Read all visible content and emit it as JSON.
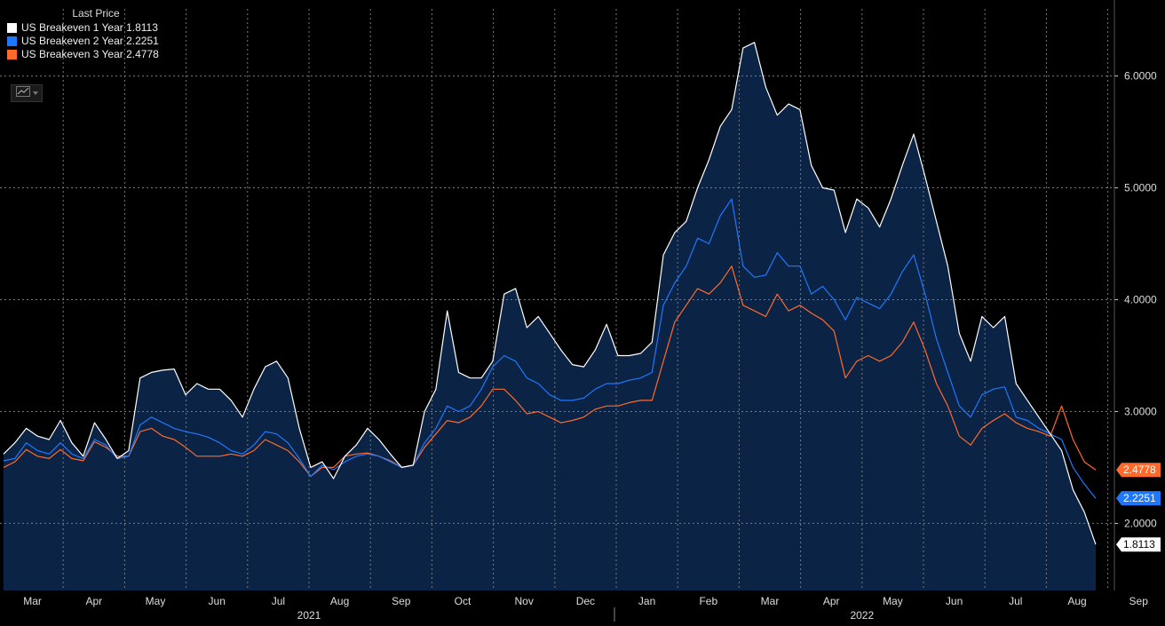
{
  "legend": {
    "header": "Last Price",
    "items": [
      {
        "label": "US Breakeven 1 Year",
        "value": "1.8113",
        "color": "#ffffff"
      },
      {
        "label": "US Breakeven 2 Year",
        "value": "2.2251",
        "color": "#1e78ff"
      },
      {
        "label": "US Breakeven 3 Year",
        "value": "2.4778",
        "color": "#ff6a2b"
      }
    ]
  },
  "colors": {
    "background": "#000000",
    "area_fill": "#0b2344",
    "grid": "#7a7a7a"
  },
  "chart_data": {
    "type": "line",
    "y_axis_side": "right",
    "ylim": [
      1.4,
      6.6
    ],
    "yticks": [
      "2.0000",
      "3.0000",
      "4.0000",
      "5.0000",
      "6.0000"
    ],
    "x_month_labels": [
      "Mar",
      "Apr",
      "May",
      "Jun",
      "Jul",
      "Aug",
      "Sep",
      "Oct",
      "Nov",
      "Dec",
      "Jan",
      "Feb",
      "Mar",
      "Apr",
      "May",
      "Jun",
      "Jul",
      "Aug",
      "Sep"
    ],
    "x_year_labels": [
      "2021",
      "2022"
    ],
    "grid": true,
    "area_fill_under_series": "US Breakeven 1 Year",
    "last_value_tags": [
      "2.4778",
      "2.2251",
      "1.8113"
    ],
    "series": [
      {
        "name": "US Breakeven 1 Year",
        "values": [
          2.62,
          2.72,
          2.85,
          2.78,
          2.75,
          2.92,
          2.72,
          2.6,
          2.9,
          2.75,
          2.58,
          2.65,
          3.3,
          3.35,
          3.37,
          3.38,
          3.15,
          3.25,
          3.2,
          3.2,
          3.1,
          2.95,
          3.2,
          3.4,
          3.45,
          3.3,
          2.85,
          2.5,
          2.55,
          2.4,
          2.6,
          2.7,
          2.85,
          2.75,
          2.62,
          2.5,
          2.52,
          3.0,
          3.2,
          3.9,
          3.35,
          3.3,
          3.3,
          3.45,
          4.05,
          4.1,
          3.75,
          3.85,
          3.7,
          3.55,
          3.42,
          3.4,
          3.55,
          3.78,
          3.5,
          3.5,
          3.52,
          3.62,
          4.4,
          4.6,
          4.7,
          5.0,
          5.25,
          5.55,
          5.7,
          6.25,
          6.3,
          5.9,
          5.65,
          5.75,
          5.7,
          5.2,
          5.0,
          4.98,
          4.6,
          4.9,
          4.82,
          4.65,
          4.9,
          5.2,
          5.48,
          5.1,
          4.7,
          4.3,
          3.7,
          3.45,
          3.85,
          3.75,
          3.85,
          3.25,
          3.1,
          2.95,
          2.8,
          2.65,
          2.3,
          2.1,
          1.8113
        ]
      },
      {
        "name": "US Breakeven 2 Year",
        "values": [
          2.56,
          2.58,
          2.72,
          2.65,
          2.62,
          2.72,
          2.62,
          2.58,
          2.75,
          2.7,
          2.58,
          2.6,
          2.88,
          2.95,
          2.9,
          2.85,
          2.82,
          2.8,
          2.77,
          2.72,
          2.65,
          2.62,
          2.7,
          2.82,
          2.8,
          2.72,
          2.58,
          2.42,
          2.52,
          2.48,
          2.55,
          2.6,
          2.62,
          2.6,
          2.55,
          2.5,
          2.52,
          2.72,
          2.85,
          3.05,
          3.0,
          3.05,
          3.2,
          3.4,
          3.5,
          3.45,
          3.3,
          3.25,
          3.15,
          3.1,
          3.1,
          3.12,
          3.2,
          3.25,
          3.25,
          3.28,
          3.3,
          3.35,
          3.95,
          4.15,
          4.3,
          4.55,
          4.5,
          4.75,
          4.9,
          4.3,
          4.2,
          4.22,
          4.42,
          4.3,
          4.3,
          4.05,
          4.12,
          4.0,
          3.82,
          4.02,
          3.97,
          3.92,
          4.05,
          4.25,
          4.4,
          4.05,
          3.65,
          3.35,
          3.05,
          2.95,
          3.15,
          3.2,
          3.22,
          2.95,
          2.92,
          2.85,
          2.8,
          2.75,
          2.5,
          2.35,
          2.2251
        ]
      },
      {
        "name": "US Breakeven 3 Year",
        "values": [
          2.5,
          2.55,
          2.66,
          2.6,
          2.58,
          2.66,
          2.58,
          2.56,
          2.73,
          2.68,
          2.6,
          2.6,
          2.82,
          2.85,
          2.78,
          2.75,
          2.68,
          2.6,
          2.6,
          2.6,
          2.62,
          2.6,
          2.65,
          2.75,
          2.7,
          2.65,
          2.55,
          2.42,
          2.5,
          2.5,
          2.6,
          2.62,
          2.63,
          2.6,
          2.56,
          2.5,
          2.52,
          2.68,
          2.8,
          2.92,
          2.9,
          2.95,
          3.05,
          3.2,
          3.2,
          3.1,
          2.98,
          3.0,
          2.95,
          2.9,
          2.92,
          2.95,
          3.02,
          3.05,
          3.05,
          3.08,
          3.1,
          3.1,
          3.45,
          3.8,
          3.95,
          4.1,
          4.05,
          4.15,
          4.3,
          3.95,
          3.9,
          3.85,
          4.05,
          3.9,
          3.95,
          3.88,
          3.82,
          3.72,
          3.3,
          3.45,
          3.5,
          3.45,
          3.5,
          3.62,
          3.8,
          3.55,
          3.25,
          3.05,
          2.78,
          2.7,
          2.85,
          2.92,
          2.98,
          2.9,
          2.85,
          2.82,
          2.78,
          3.05,
          2.75,
          2.55,
          2.4778
        ]
      }
    ]
  }
}
